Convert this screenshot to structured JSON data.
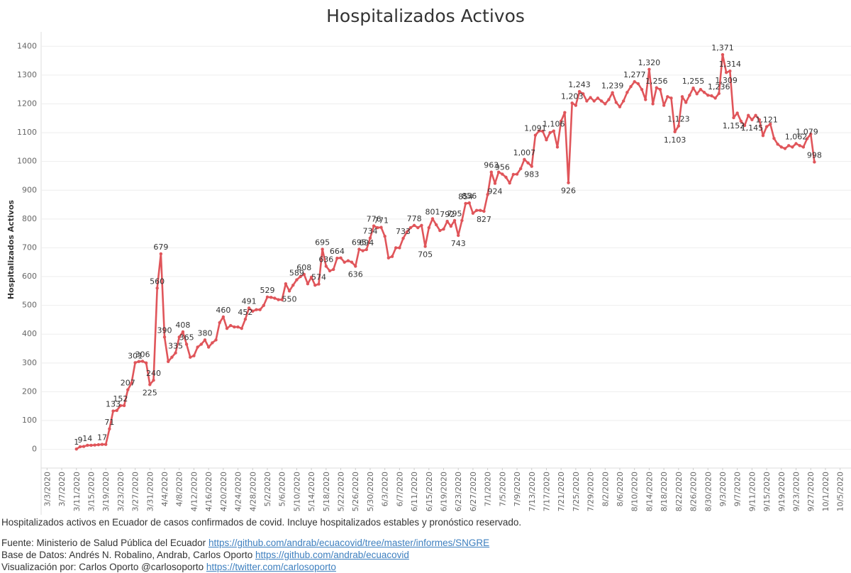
{
  "chart_data": {
    "type": "line",
    "title": "Hospitalizados Activos",
    "y_label": "Hospitalizados Activos",
    "xlim": [
      "3/1/2020",
      "10/7/2020"
    ],
    "xticks": [
      "3/3/2020",
      "3/7/2020",
      "3/11/2020",
      "3/15/2020",
      "3/19/2020",
      "3/23/2020",
      "3/27/2020",
      "3/31/2020",
      "4/4/2020",
      "4/8/2020",
      "4/12/2020",
      "4/16/2020",
      "4/20/2020",
      "4/24/2020",
      "4/28/2020",
      "5/2/2020",
      "5/6/2020",
      "5/10/2020",
      "5/14/2020",
      "5/18/2020",
      "5/22/2020",
      "5/26/2020",
      "5/30/2020",
      "6/3/2020",
      "6/7/2020",
      "6/11/2020",
      "6/15/2020",
      "6/19/2020",
      "6/23/2020",
      "6/27/2020",
      "7/1/2020",
      "7/5/2020",
      "7/9/2020",
      "7/13/2020",
      "7/17/2020",
      "7/21/2020",
      "7/25/2020",
      "7/29/2020",
      "8/2/2020",
      "8/6/2020",
      "8/10/2020",
      "8/14/2020",
      "8/18/2020",
      "8/22/2020",
      "8/26/2020",
      "8/30/2020",
      "9/3/2020",
      "9/7/2020",
      "9/11/2020",
      "9/15/2020",
      "9/19/2020",
      "9/23/2020",
      "9/27/2020",
      "10/1/2020",
      "10/5/2020"
    ],
    "ylim": [
      -65,
      1450
    ],
    "yticks": [
      0,
      100,
      200,
      300,
      400,
      500,
      600,
      700,
      800,
      900,
      1000,
      1100,
      1200,
      1300,
      1400
    ],
    "grid": true,
    "series": [
      {
        "name": "Hospitalizados Activos",
        "color": "#e0555a",
        "x": [
          "3/11/2020",
          "3/12/2020",
          "3/13/2020",
          "3/14/2020",
          "3/15/2020",
          "3/16/2020",
          "3/17/2020",
          "3/18/2020",
          "3/19/2020",
          "3/20/2020",
          "3/21/2020",
          "3/22/2020",
          "3/23/2020",
          "3/24/2020",
          "3/25/2020",
          "3/26/2020",
          "3/27/2020",
          "3/28/2020",
          "3/29/2020",
          "3/30/2020",
          "3/31/2020",
          "4/1/2020",
          "4/2/2020",
          "4/3/2020",
          "4/4/2020",
          "4/5/2020",
          "4/6/2020",
          "4/7/2020",
          "4/8/2020",
          "4/9/2020",
          "4/10/2020",
          "4/11/2020",
          "4/12/2020",
          "4/13/2020",
          "4/14/2020",
          "4/15/2020",
          "4/16/2020",
          "4/17/2020",
          "4/18/2020",
          "4/19/2020",
          "4/20/2020",
          "4/21/2020",
          "4/22/2020",
          "4/23/2020",
          "4/24/2020",
          "4/25/2020",
          "4/26/2020",
          "4/27/2020",
          "4/28/2020",
          "4/29/2020",
          "4/30/2020",
          "5/1/2020",
          "5/2/2020",
          "5/3/2020",
          "5/4/2020",
          "5/5/2020",
          "5/6/2020",
          "5/7/2020",
          "5/8/2020",
          "5/9/2020",
          "5/10/2020",
          "5/11/2020",
          "5/12/2020",
          "5/13/2020",
          "5/14/2020",
          "5/15/2020",
          "5/16/2020",
          "5/17/2020",
          "5/18/2020",
          "5/19/2020",
          "5/20/2020",
          "5/21/2020",
          "5/22/2020",
          "5/23/2020",
          "5/24/2020",
          "5/25/2020",
          "5/26/2020",
          "5/27/2020",
          "5/28/2020",
          "5/29/2020",
          "5/30/2020",
          "5/31/2020",
          "6/1/2020",
          "6/2/2020",
          "6/3/2020",
          "6/4/2020",
          "6/5/2020",
          "6/6/2020",
          "6/7/2020",
          "6/8/2020",
          "6/9/2020",
          "6/10/2020",
          "6/11/2020",
          "6/12/2020",
          "6/13/2020",
          "6/14/2020",
          "6/15/2020",
          "6/16/2020",
          "6/17/2020",
          "6/18/2020",
          "6/19/2020",
          "6/20/2020",
          "6/21/2020",
          "6/22/2020",
          "6/23/2020",
          "6/24/2020",
          "6/25/2020",
          "6/26/2020",
          "6/27/2020",
          "6/28/2020",
          "6/29/2020",
          "6/30/2020",
          "7/1/2020",
          "7/2/2020",
          "7/3/2020",
          "7/4/2020",
          "7/5/2020",
          "7/6/2020",
          "7/7/2020",
          "7/8/2020",
          "7/9/2020",
          "7/10/2020",
          "7/11/2020",
          "7/12/2020",
          "7/13/2020",
          "7/14/2020",
          "7/15/2020",
          "7/16/2020",
          "7/17/2020",
          "7/18/2020",
          "7/19/2020",
          "7/20/2020",
          "7/21/2020",
          "7/22/2020",
          "7/23/2020",
          "7/24/2020",
          "7/25/2020",
          "7/26/2020",
          "7/27/2020",
          "7/28/2020",
          "7/29/2020",
          "7/30/2020",
          "7/31/2020",
          "8/1/2020",
          "8/2/2020",
          "8/3/2020",
          "8/4/2020",
          "8/5/2020",
          "8/6/2020",
          "8/7/2020",
          "8/8/2020",
          "8/9/2020",
          "8/10/2020",
          "8/11/2020",
          "8/12/2020",
          "8/13/2020",
          "8/14/2020",
          "8/15/2020",
          "8/16/2020",
          "8/17/2020",
          "8/18/2020",
          "8/19/2020",
          "8/20/2020",
          "8/21/2020",
          "8/22/2020",
          "8/23/2020",
          "8/24/2020",
          "8/25/2020",
          "8/26/2020",
          "8/27/2020",
          "8/28/2020",
          "8/29/2020",
          "8/30/2020",
          "8/31/2020",
          "9/1/2020",
          "9/2/2020",
          "9/3/2020",
          "9/4/2020",
          "9/5/2020",
          "9/6/2020",
          "9/7/2020",
          "9/8/2020",
          "9/9/2020",
          "9/10/2020",
          "9/11/2020",
          "9/12/2020",
          "9/13/2020",
          "9/14/2020",
          "9/15/2020",
          "9/16/2020",
          "9/17/2020",
          "9/18/2020",
          "9/19/2020",
          "9/20/2020",
          "9/21/2020",
          "9/22/2020",
          "9/23/2020",
          "9/24/2020",
          "9/25/2020",
          "9/26/2020",
          "9/27/2020",
          "9/28/2020"
        ],
        "values": [
          1,
          9,
          10,
          14,
          14,
          15,
          16,
          17,
          17,
          71,
          133,
          135,
          152,
          152,
          207,
          230,
          301,
          305,
          306,
          300,
          225,
          240,
          560,
          679,
          390,
          305,
          320,
          335,
          390,
          408,
          365,
          320,
          325,
          355,
          365,
          380,
          355,
          370,
          380,
          440,
          460,
          420,
          430,
          425,
          425,
          420,
          452,
          491,
          480,
          485,
          485,
          500,
          529,
          528,
          525,
          520,
          520,
          575,
          550,
          570,
          589,
          600,
          608,
          575,
          598,
          570,
          574,
          695,
          636,
          620,
          625,
          664,
          665,
          650,
          655,
          650,
          636,
          695,
          690,
          694,
          734,
          776,
          770,
          771,
          740,
          665,
          670,
          700,
          700,
          733,
          755,
          770,
          778,
          770,
          778,
          705,
          770,
          801,
          780,
          760,
          765,
          792,
          775,
          795,
          743,
          795,
          854,
          856,
          820,
          830,
          830,
          827,
          885,
          963,
          924,
          963,
          956,
          945,
          925,
          955,
          956,
          975,
          1007,
          995,
          983,
          1091,
          1106,
          1105,
          1075,
          1100,
          1106,
          1050,
          1140,
          1170,
          926,
          1203,
          1195,
          1243,
          1235,
          1210,
          1222,
          1210,
          1220,
          1210,
          1200,
          1215,
          1239,
          1205,
          1190,
          1210,
          1240,
          1260,
          1277,
          1270,
          1250,
          1215,
          1320,
          1200,
          1256,
          1250,
          1195,
          1225,
          1220,
          1103,
          1123,
          1225,
          1205,
          1230,
          1255,
          1235,
          1250,
          1240,
          1230,
          1228,
          1220,
          1236,
          1371,
          1309,
          1314,
          1152,
          1168,
          1140,
          1125,
          1160,
          1145,
          1160,
          1145,
          1090,
          1121,
          1130,
          1080,
          1060,
          1050,
          1045,
          1055,
          1050,
          1062,
          1055,
          1050,
          1079,
          1095,
          998
        ],
        "value_labels": [
          "1",
          "9",
          null,
          "14",
          null,
          null,
          null,
          "17",
          null,
          "71",
          "133",
          null,
          "152",
          null,
          "207",
          null,
          "301",
          null,
          "306",
          null,
          "225",
          "240",
          "560",
          "679",
          "390",
          null,
          null,
          "335",
          null,
          "408",
          "365",
          null,
          null,
          null,
          null,
          "380",
          null,
          null,
          null,
          null,
          "460",
          null,
          null,
          null,
          null,
          null,
          "452",
          "491",
          null,
          null,
          null,
          null,
          "529",
          null,
          null,
          null,
          null,
          null,
          "550",
          null,
          "589",
          null,
          "608",
          null,
          null,
          null,
          "574",
          "695",
          "636",
          null,
          null,
          "664",
          null,
          null,
          null,
          null,
          "636",
          "695",
          null,
          "694",
          "734",
          "776",
          null,
          "771",
          null,
          null,
          null,
          null,
          null,
          "733",
          null,
          null,
          "778",
          null,
          null,
          "705",
          null,
          "801",
          null,
          null,
          null,
          "792",
          null,
          "795",
          "743",
          null,
          "854",
          "856",
          null,
          null,
          null,
          "827",
          null,
          "963",
          "924",
          null,
          "956",
          null,
          null,
          null,
          null,
          null,
          "1,007",
          null,
          "983",
          "1,091",
          null,
          null,
          null,
          null,
          "1,106",
          null,
          null,
          null,
          "926",
          "1,203",
          null,
          "1,243",
          null,
          null,
          null,
          null,
          null,
          null,
          null,
          null,
          "1,239",
          null,
          null,
          null,
          null,
          null,
          "1,277",
          null,
          null,
          null,
          "1,320",
          null,
          "1,256",
          null,
          null,
          null,
          null,
          "1,103",
          "1,123",
          null,
          null,
          null,
          "1,255",
          null,
          null,
          null,
          null,
          null,
          null,
          "1,236",
          "1,371",
          "1,309",
          "1,314",
          "1,152",
          null,
          null,
          null,
          null,
          "1,145",
          null,
          null,
          null,
          "1,121",
          null,
          null,
          null,
          null,
          null,
          null,
          null,
          "1,062",
          null,
          null,
          "1,079",
          null,
          "998"
        ]
      }
    ]
  },
  "footer": {
    "description": "Hospitalizados activos en Ecuador de casos confirmados de covid. Incluye hospitalizados estables y pronóstico reservado.",
    "lines": [
      {
        "text": "Fuente: Ministerio de Salud Pública del Ecuador",
        "link": "https://github.com/andrab/ecuacovid/tree/master/informes/SNGRE"
      },
      {
        "text": "Base de Datos: Andrés N. Robalino, Andrab, Carlos Oporto",
        "link": "https://github.com/andrab/ecuacovid"
      },
      {
        "text": "Visualización por: Carlos Oporto @carlosoporto",
        "link": "https://twitter.com/carlosoporto"
      }
    ]
  }
}
